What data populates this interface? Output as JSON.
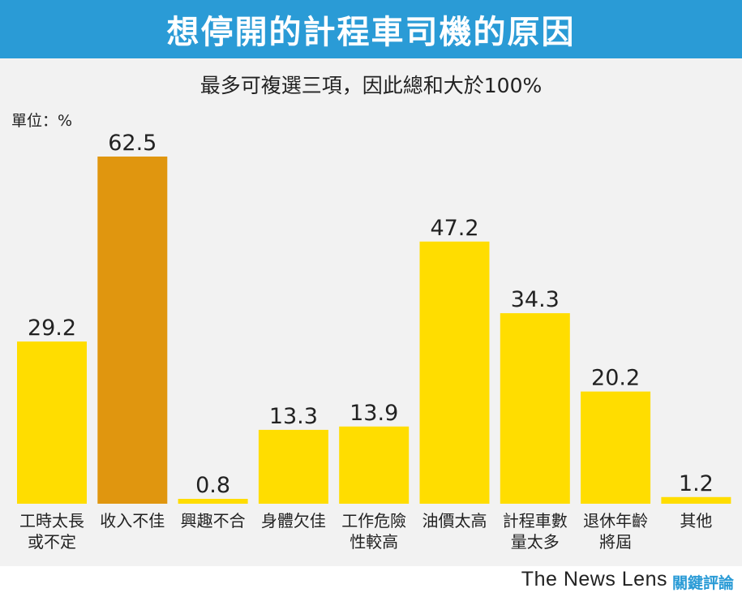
{
  "header": {
    "title": "想停開的計程車司機的原因",
    "subtitle": "最多可複選三項，因此總和大於100%",
    "unit_label": "單位：%"
  },
  "footer": {
    "brand": "The News Lens",
    "brand_cn": "關鍵評論"
  },
  "colors": {
    "banner": "#2a9bd6",
    "bar": "#ffdd00",
    "highlight_bar": "#e0960f",
    "panel": "#f2f2f2"
  },
  "chart_data": {
    "type": "bar",
    "title": "想停開的計程車司機的原因",
    "subtitle": "最多可複選三項，因此總和大於100%",
    "ylabel": "單位：%",
    "ylim": [
      0,
      62.5
    ],
    "grid": false,
    "categories": [
      [
        "工時太長",
        "或不定"
      ],
      [
        "收入不佳"
      ],
      [
        "興趣不合"
      ],
      [
        "身體欠佳"
      ],
      [
        "工作危險",
        "性較高"
      ],
      [
        "油價太高"
      ],
      [
        "計程車數",
        "量太多"
      ],
      [
        "退休年齡",
        "將屆"
      ],
      [
        "其他"
      ]
    ],
    "values": [
      29.2,
      62.5,
      0.8,
      13.3,
      13.9,
      47.2,
      34.3,
      20.2,
      1.2
    ],
    "value_labels": [
      "29.2",
      "62.5",
      "0.8",
      "13.3",
      "13.9",
      "47.2",
      "34.3",
      "20.2",
      "1.2"
    ],
    "highlight_index": 1
  }
}
